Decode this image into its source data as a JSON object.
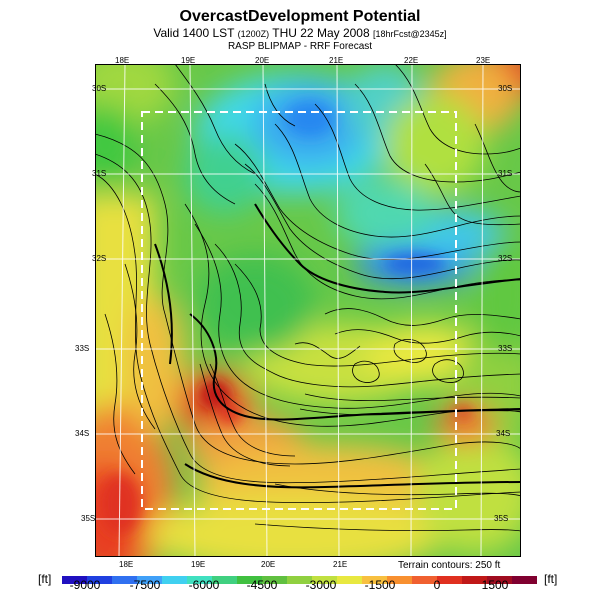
{
  "header": {
    "title": "OvercastDevelopment Potential",
    "valid_prefix": "Valid 1400 LST",
    "valid_utc": "(1200Z)",
    "valid_date": "THU 22 May 2008",
    "valid_forecast": "[18hrFcst@2345z]",
    "subtitle": "RASP BLIPMAP - RRF Forecast"
  },
  "map": {
    "lon_labels_top": [
      "18E",
      "19E",
      "20E",
      "21E",
      "22E",
      "23E"
    ],
    "lon_labels_bottom": [
      "18E",
      "19E",
      "20E",
      "21E"
    ],
    "lat_labels_left": [
      "30S",
      "31S",
      "32S",
      "33S",
      "34S",
      "35S"
    ],
    "lat_labels_right": [
      "30S",
      "31S",
      "32S",
      "33S",
      "34S",
      "35S"
    ],
    "terrain_note": "Terrain contours: 250 ft",
    "inner_domain_box": "dashed",
    "contour_color": "#000000"
  },
  "colorbar": {
    "unit_left": "[ft]",
    "unit_right": "[ft]",
    "tick_labels": [
      "-9000",
      "-7500",
      "-6000",
      "-4500",
      "-3000",
      "-1500",
      "0",
      "1500"
    ],
    "colors": [
      "#2010c0",
      "#2040e0",
      "#3070f0",
      "#40a0f8",
      "#40d0f0",
      "#40e0c0",
      "#40d080",
      "#40c040",
      "#60c040",
      "#90d040",
      "#c0e040",
      "#e8e840",
      "#f8c040",
      "#f89030",
      "#f06030",
      "#e03020",
      "#c01818",
      "#a00c20",
      "#800030"
    ]
  }
}
